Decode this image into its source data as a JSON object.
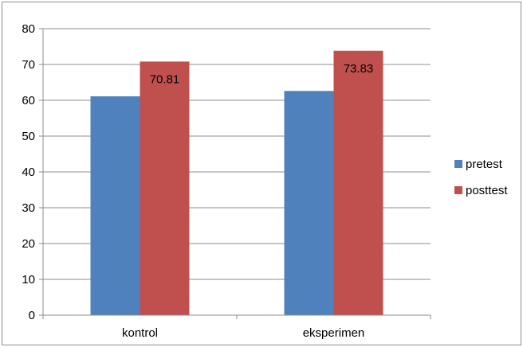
{
  "chart_data": {
    "type": "bar",
    "categories": [
      "kontrol",
      "eksperimen"
    ],
    "series": [
      {
        "name": "pretest",
        "values": [
          61.1,
          62.6
        ],
        "color": "#4f81bd",
        "data_labels": [
          null,
          null
        ]
      },
      {
        "name": "posttest",
        "values": [
          70.81,
          73.83
        ],
        "color": "#c0504d",
        "data_labels": [
          "70.81",
          "73.83"
        ]
      }
    ],
    "y_ticks": [
      "0",
      "10",
      "20",
      "30",
      "40",
      "50",
      "60",
      "70",
      "80"
    ],
    "ylim": [
      0,
      80
    ],
    "grid": true,
    "legend_position": "right",
    "title": "",
    "xlabel": "",
    "ylabel": ""
  }
}
